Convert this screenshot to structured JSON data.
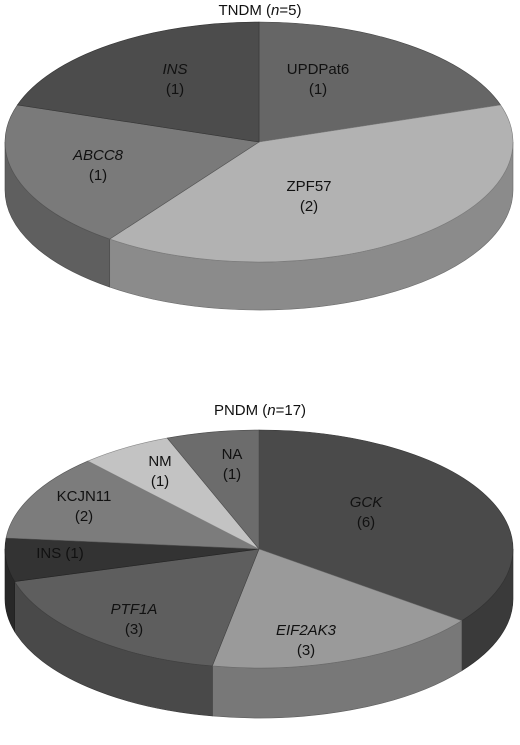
{
  "chart_data": [
    {
      "type": "pie",
      "title_prefix": "TNDM (",
      "title_n": "n",
      "title_suffix": "=5)",
      "slices": [
        {
          "label": "UPDPat6",
          "count_text": "(1)",
          "value": 1,
          "italic": false,
          "color": "#666666"
        },
        {
          "label": "ZPF57",
          "count_text": "(2)",
          "value": 2,
          "italic": false,
          "color": "#b2b2b2"
        },
        {
          "label": "ABCC8",
          "count_text": "(1)",
          "value": 1,
          "italic": true,
          "color": "#7a7a7a"
        },
        {
          "label": "INS",
          "count_text": "(1)",
          "value": 1,
          "italic": true,
          "color": "#4c4c4c"
        }
      ]
    },
    {
      "type": "pie",
      "title_prefix": "PNDM (",
      "title_n": "n",
      "title_suffix": "=17)",
      "slices": [
        {
          "label": "GCK",
          "count_text": "(6)",
          "value": 6,
          "italic": true,
          "color": "#4a4a4a"
        },
        {
          "label": "EIF2AK3",
          "count_text": "(3)",
          "value": 3,
          "italic": true,
          "color": "#9a9a9a"
        },
        {
          "label": "PTF1A",
          "count_text": "(3)",
          "value": 3,
          "italic": true,
          "color": "#5e5e5e"
        },
        {
          "label": "INS (1)",
          "count_text": "",
          "value": 1,
          "italic": false,
          "color": "#333333"
        },
        {
          "label": "KCJN11",
          "count_text": "(2)",
          "value": 2,
          "italic": false,
          "color": "#7c7c7c"
        },
        {
          "label": "NM",
          "count_text": "(1)",
          "value": 1,
          "italic": false,
          "color": "#c3c3c3"
        },
        {
          "label": "NA",
          "count_text": "(1)",
          "value": 1,
          "italic": false,
          "color": "#6c6c6c"
        }
      ]
    }
  ]
}
